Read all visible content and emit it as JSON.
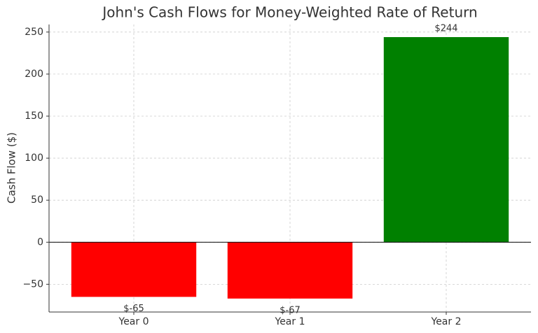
{
  "chart_data": {
    "type": "bar",
    "title": "John's Cash Flows for Money-Weighted Rate of Return",
    "y_label": "Cash Flow ($)",
    "categories": [
      "Year 0",
      "Year 1",
      "Year 2"
    ],
    "values": [
      -65,
      -67,
      244
    ],
    "value_labels": [
      "$-65",
      "$-67",
      "$244"
    ],
    "colors": [
      "#ff0000",
      "#ff0000",
      "#008000"
    ],
    "ylim": [
      -83,
      259
    ],
    "yticks": [
      {
        "value": -50,
        "label": "−50"
      },
      0,
      50,
      100,
      150,
      200,
      250
    ],
    "grid": true
  }
}
